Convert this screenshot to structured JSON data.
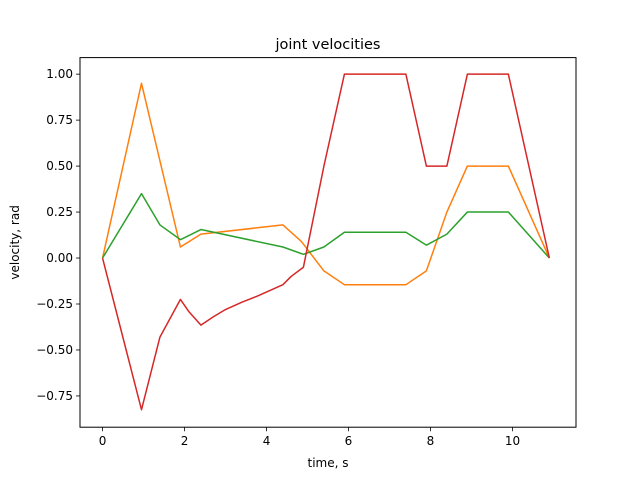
{
  "chart_data": {
    "type": "line",
    "title": "joint velocities",
    "xlabel": "time, s",
    "ylabel": "velocity, rad",
    "xlim": [
      -0.55,
      11.55
    ],
    "ylim": [
      -0.92,
      1.09
    ],
    "xticks": [
      0,
      2,
      4,
      6,
      8,
      10
    ],
    "yticks": [
      -0.75,
      -0.5,
      -0.25,
      0.0,
      0.25,
      0.5,
      0.75,
      1.0
    ],
    "xtick_labels": [
      "0",
      "2",
      "4",
      "6",
      "8",
      "10"
    ],
    "ytick_labels": [
      "−0.75",
      "−0.50",
      "−0.25",
      "0.00",
      "0.25",
      "0.50",
      "0.75",
      "1.00"
    ],
    "grid": false,
    "legend": "none",
    "series": [
      {
        "color": "#ff7f0e",
        "x": [
          0,
          0.95,
          1.9,
          2.4,
          4.4,
          4.85,
          5.4,
          5.9,
          7.4,
          7.9,
          8.4,
          8.9,
          9.9,
          10.9
        ],
        "y": [
          0,
          0.95,
          0.06,
          0.13,
          0.18,
          0.09,
          -0.07,
          -0.145,
          -0.145,
          -0.07,
          0.25,
          0.5,
          0.5,
          0
        ]
      },
      {
        "color": "#2ca02c",
        "x": [
          0,
          0.95,
          1.4,
          1.9,
          2.4,
          4.4,
          4.9,
          5.4,
          5.9,
          7.4,
          7.9,
          8.4,
          8.9,
          9.9,
          10.9
        ],
        "y": [
          0,
          0.35,
          0.18,
          0.1,
          0.155,
          0.06,
          0.02,
          0.06,
          0.14,
          0.14,
          0.07,
          0.13,
          0.25,
          0.25,
          0
        ]
      },
      {
        "color": "#d62728",
        "x": [
          0,
          0.95,
          1.4,
          1.9,
          2.1,
          2.4,
          2.7,
          3.0,
          3.4,
          3.8,
          4.4,
          4.6,
          4.9,
          5.4,
          5.9,
          7.4,
          7.9,
          8.4,
          8.9,
          9.9,
          10.9
        ],
        "y": [
          0,
          -0.825,
          -0.43,
          -0.225,
          -0.29,
          -0.365,
          -0.32,
          -0.28,
          -0.24,
          -0.205,
          -0.145,
          -0.1,
          -0.05,
          0.5,
          1.0,
          1.0,
          0.5,
          0.5,
          1.0,
          1.0,
          0
        ]
      }
    ]
  }
}
